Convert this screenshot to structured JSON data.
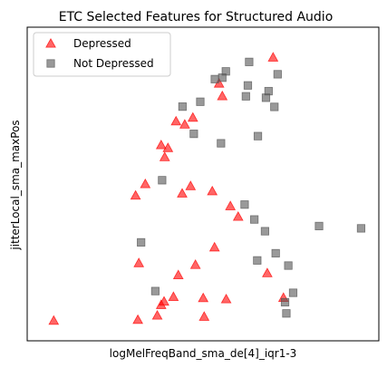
{
  "chart_data": {
    "type": "scatter",
    "title": "ETC Selected Features for Structured Audio",
    "xlabel": "logMelFreqBand_sma_de[4]_iqr1-3",
    "ylabel": "jitterLocal_sma_maxPos",
    "xticks": [],
    "yticks": [],
    "xlim": [
      0,
      100
    ],
    "ylim": [
      0,
      100
    ],
    "grid": false,
    "legend_position": "top-left",
    "series": [
      {
        "name": "Depressed",
        "marker": "triangle",
        "color": "#ff0000",
        "points": [
          [
            71.8,
            93.9
          ],
          [
            55.1,
            84.8
          ],
          [
            56.1,
            80.4
          ],
          [
            41.8,
            71.6
          ],
          [
            44.5,
            70.5
          ],
          [
            47.0,
            72.9
          ],
          [
            37.2,
            63.3
          ],
          [
            38.3,
            59.1
          ],
          [
            39.3,
            62.3
          ],
          [
            46.3,
            49.0
          ],
          [
            32.3,
            49.7
          ],
          [
            29.3,
            45.7
          ],
          [
            43.7,
            46.4
          ],
          [
            53.0,
            47.2
          ],
          [
            58.6,
            42.0
          ],
          [
            61.0,
            38.3
          ],
          [
            53.7,
            27.6
          ],
          [
            30.3,
            22.1
          ],
          [
            42.5,
            17.9
          ],
          [
            47.8,
            21.5
          ],
          [
            70.0,
            18.6
          ],
          [
            41.0,
            10.3
          ],
          [
            38.1,
            8.7
          ],
          [
            37.2,
            7.5
          ],
          [
            50.2,
            9.9
          ],
          [
            57.3,
            9.5
          ],
          [
            75.0,
            10.0
          ],
          [
            36.0,
            3.8
          ],
          [
            30.0,
            2.3
          ],
          [
            50.5,
            3.4
          ],
          [
            4.0,
            2.0
          ]
        ]
      },
      {
        "name": "Not Depressed",
        "marker": "square",
        "color": "#555555",
        "points": [
          [
            57.2,
            89.0
          ],
          [
            56.1,
            86.8
          ],
          [
            53.8,
            86.3
          ],
          [
            64.4,
            92.3
          ],
          [
            73.2,
            88.0
          ],
          [
            64.0,
            84.1
          ],
          [
            70.4,
            82.1
          ],
          [
            63.4,
            80.3
          ],
          [
            69.6,
            79.8
          ],
          [
            49.3,
            78.4
          ],
          [
            43.8,
            76.7
          ],
          [
            72.2,
            76.6
          ],
          [
            47.3,
            67.2
          ],
          [
            67.1,
            66.4
          ],
          [
            55.7,
            63.9
          ],
          [
            37.5,
            51.0
          ],
          [
            63.0,
            42.5
          ],
          [
            66.0,
            37.3
          ],
          [
            69.3,
            33.2
          ],
          [
            86.0,
            35.0
          ],
          [
            99.0,
            34.2
          ],
          [
            31.0,
            29.3
          ],
          [
            72.6,
            25.5
          ],
          [
            66.9,
            23.0
          ],
          [
            76.5,
            21.2
          ],
          [
            35.4,
            12.3
          ],
          [
            78.0,
            11.7
          ],
          [
            75.5,
            8.4
          ],
          [
            75.9,
            4.5
          ]
        ]
      }
    ]
  }
}
